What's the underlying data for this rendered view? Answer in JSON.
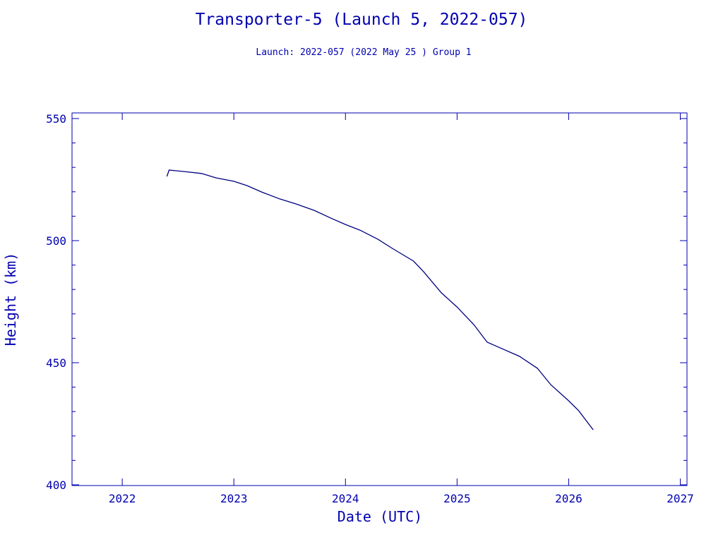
{
  "chart_data": {
    "type": "line",
    "title": "Transporter-5 (Launch 5, 2022-057)",
    "subtitle": "Launch: 2022-057  (2022 May 25 )  Group 1",
    "xlabel": "Date (UTC)",
    "ylabel": "Height (km)",
    "xlim": [
      2021.55,
      2027.06
    ],
    "ylim": [
      399.7,
      552.3
    ],
    "xticks": [
      2022,
      2023,
      2024,
      2025,
      2026,
      2027
    ],
    "yticks": [
      400,
      450,
      500,
      550
    ],
    "grid": false,
    "color": "#000080",
    "x": [
      2022.4,
      2022.42,
      2022.55,
      2022.71,
      2022.84,
      2023.0,
      2023.12,
      2023.25,
      2023.41,
      2023.56,
      2023.72,
      2023.88,
      2024.0,
      2024.13,
      2024.29,
      2024.42,
      2024.61,
      2024.7,
      2024.86,
      2025.0,
      2025.15,
      2025.27,
      2025.37,
      2025.56,
      2025.72,
      2025.84,
      2026.0,
      2026.09,
      2026.22
    ],
    "y": [
      526.3,
      528.9,
      528.3,
      527.5,
      525.7,
      524.3,
      522.5,
      519.9,
      517.1,
      515.0,
      512.4,
      509.0,
      506.6,
      504.3,
      500.6,
      496.8,
      491.6,
      487.3,
      478.6,
      472.8,
      465.6,
      458.4,
      456.4,
      452.6,
      447.7,
      441.0,
      434.4,
      430.3,
      422.5
    ]
  }
}
